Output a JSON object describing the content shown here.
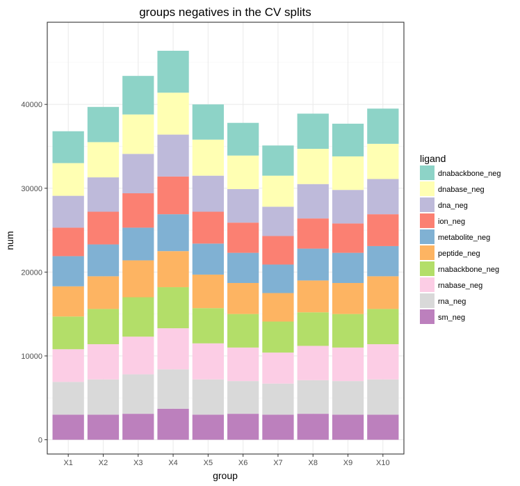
{
  "chart_data": {
    "type": "bar",
    "stacked": true,
    "title": "groups negatives in the CV splits",
    "xlabel": "group",
    "ylabel": "num",
    "ylim": [
      -1700,
      49800
    ],
    "yticks": [
      0,
      10000,
      20000,
      30000,
      40000
    ],
    "grid": true,
    "legend_title": "ligand",
    "legend_position": "right",
    "categories": [
      "X1",
      "X2",
      "X3",
      "X4",
      "X5",
      "X6",
      "X7",
      "X8",
      "X9",
      "X10"
    ],
    "series": [
      {
        "name": "sm_neg",
        "color": "#BC80BD",
        "values": [
          3000,
          3000,
          3100,
          3700,
          3000,
          3100,
          3000,
          3100,
          3000,
          3000
        ]
      },
      {
        "name": "rna_neg",
        "color": "#D9D9D9",
        "values": [
          3900,
          4200,
          4700,
          4700,
          4200,
          3900,
          3700,
          4000,
          4000,
          4200
        ]
      },
      {
        "name": "rnabase_neg",
        "color": "#FCCDE5",
        "values": [
          3900,
          4200,
          4500,
          4900,
          4300,
          4000,
          3700,
          4100,
          4000,
          4200
        ]
      },
      {
        "name": "rnabackbone_neg",
        "color": "#B3DE69",
        "values": [
          3900,
          4200,
          4700,
          4900,
          4200,
          4000,
          3700,
          4000,
          4000,
          4200
        ]
      },
      {
        "name": "peptide_neg",
        "color": "#FDB462",
        "values": [
          3600,
          3900,
          4400,
          4300,
          4000,
          3700,
          3400,
          3800,
          3700,
          3900
        ]
      },
      {
        "name": "metabolite_neg",
        "color": "#80B1D3",
        "values": [
          3600,
          3800,
          3900,
          4400,
          3700,
          3600,
          3400,
          3800,
          3600,
          3600
        ]
      },
      {
        "name": "ion_neg",
        "color": "#FB8072",
        "values": [
          3400,
          3900,
          4100,
          4500,
          3800,
          3600,
          3400,
          3600,
          3500,
          3800
        ]
      },
      {
        "name": "dna_neg",
        "color": "#BEBADA",
        "values": [
          3800,
          4100,
          4700,
          5000,
          4300,
          4000,
          3500,
          4100,
          4000,
          4200
        ]
      },
      {
        "name": "dnabase_neg",
        "color": "#FFFFB3",
        "values": [
          3900,
          4200,
          4700,
          5000,
          4300,
          4000,
          3700,
          4200,
          4000,
          4200
        ]
      },
      {
        "name": "dnabackbone_neg",
        "color": "#8DD3C7",
        "values": [
          3800,
          4200,
          4600,
          5000,
          4200,
          3900,
          3600,
          4200,
          3900,
          4200
        ]
      }
    ]
  }
}
